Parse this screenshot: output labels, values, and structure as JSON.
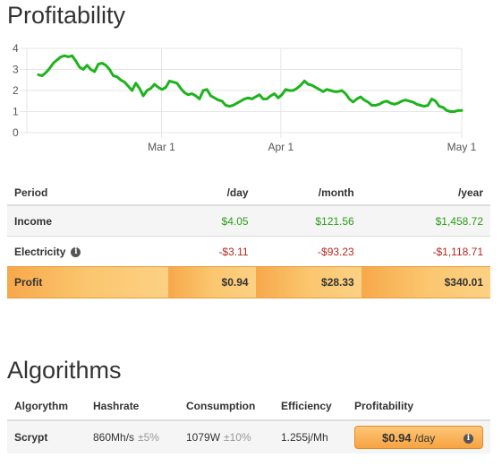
{
  "profitability_title": "Profitability",
  "algorithms_title": "Algorithms",
  "chart_data": {
    "type": "line",
    "x_tick_labels": [
      "Mar 1",
      "Apr 1",
      "May 1"
    ],
    "y_tick_labels": [
      "0",
      "1",
      "2",
      "3",
      "4"
    ],
    "ylim": [
      0,
      4
    ],
    "xlim_days": [
      0,
      113
    ],
    "x_ticks_days": [
      35,
      66,
      113
    ],
    "grid": true,
    "color": "#1db31d",
    "values": [
      2.75,
      2.7,
      2.85,
      3.05,
      3.3,
      3.45,
      3.6,
      3.65,
      3.6,
      3.65,
      3.4,
      3.1,
      3.0,
      3.2,
      3.0,
      2.9,
      3.25,
      3.3,
      3.2,
      3.0,
      2.7,
      2.65,
      2.5,
      2.4,
      2.2,
      2.0,
      2.35,
      2.1,
      1.75,
      2.0,
      2.1,
      2.3,
      2.15,
      2.05,
      2.15,
      2.45,
      2.4,
      2.35,
      2.1,
      1.9,
      1.8,
      1.85,
      1.75,
      1.6,
      2.0,
      2.05,
      1.75,
      1.65,
      1.55,
      1.5,
      1.3,
      1.25,
      1.3,
      1.4,
      1.5,
      1.6,
      1.65,
      1.6,
      1.7,
      1.8,
      1.6,
      1.6,
      1.75,
      1.85,
      1.65,
      1.8,
      2.05,
      2.0,
      2.0,
      2.1,
      2.25,
      2.45,
      2.3,
      2.25,
      2.15,
      2.05,
      1.95,
      2.05,
      2.0,
      1.95,
      1.95,
      2.0,
      1.85,
      1.6,
      1.45,
      1.6,
      1.7,
      1.55,
      1.45,
      1.3,
      1.3,
      1.35,
      1.45,
      1.5,
      1.4,
      1.35,
      1.4,
      1.5,
      1.55,
      1.5,
      1.45,
      1.35,
      1.3,
      1.25,
      1.3,
      1.6,
      1.5,
      1.25,
      1.2,
      1.05,
      1.0,
      1.0,
      1.05,
      1.05
    ]
  },
  "table": {
    "headers": [
      "Period",
      "/day",
      "/month",
      "/year"
    ],
    "rows": {
      "income": {
        "label": "Income",
        "day": "$4.05",
        "month": "$121.56",
        "year": "$1,458.72"
      },
      "electricity": {
        "label": "Electricity",
        "day": "-$3.11",
        "month": "-$93.23",
        "year": "-$1,118.71"
      },
      "profit": {
        "label": "Profit",
        "day": "$0.94",
        "month": "$28.33",
        "year": "$340.01"
      }
    }
  },
  "algorithms": {
    "headers": [
      "Algorythm",
      "Hashrate",
      "Consumption",
      "Efficiency",
      "Profitability"
    ],
    "rows": [
      {
        "algorithm": "Scrypt",
        "hashrate": "860Mh/s",
        "hashrate_tol": "±5%",
        "consumption": "1079W",
        "consumption_tol": "±10%",
        "efficiency": "1.255j/Mh",
        "profit_amount": "$0.94",
        "profit_period": "/day"
      }
    ]
  },
  "colors": {
    "positive": "#2a9d16",
    "negative": "#b3281f",
    "line": "#1db31d",
    "profit_row": "#f9b85c"
  }
}
